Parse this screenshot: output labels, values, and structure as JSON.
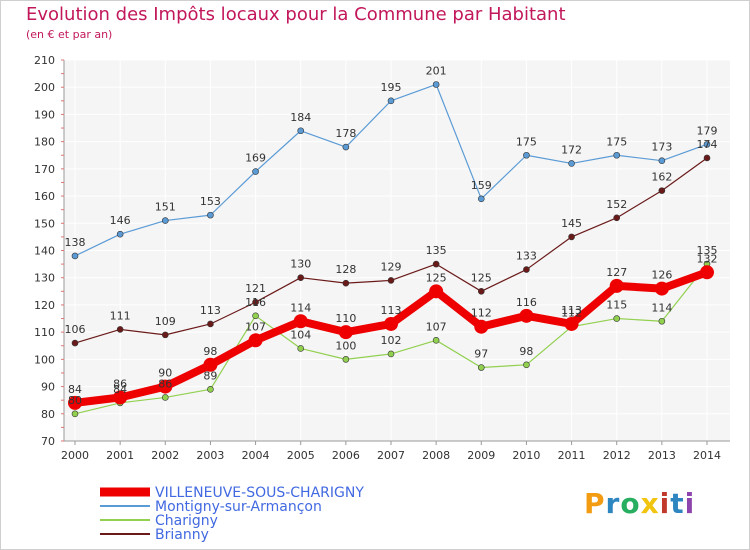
{
  "chart_data": {
    "type": "line",
    "title": "Evolution des Impôts locaux pour la Commune par Habitant",
    "subtitle": "(en € et par an)",
    "x": [
      "2000",
      "2001",
      "2002",
      "2003",
      "2004",
      "2005",
      "2006",
      "2007",
      "2008",
      "2009",
      "2010",
      "2011",
      "2012",
      "2013",
      "2014"
    ],
    "ylim": [
      70,
      210
    ],
    "yticks": [
      70,
      80,
      90,
      100,
      110,
      120,
      130,
      140,
      150,
      160,
      170,
      180,
      190,
      200,
      210
    ],
    "grid": true,
    "legend_placement": "bottom-left",
    "series": [
      {
        "name": "VILLENEUVE-SOUS-CHARIGNY",
        "color": "#ee0000",
        "values": [
          84,
          86,
          90,
          98,
          107,
          114,
          110,
          113,
          125,
          112,
          116,
          113,
          127,
          126,
          132
        ]
      },
      {
        "name": "Montigny-sur-Armançon",
        "color": "#5b9bd5",
        "values": [
          138,
          146,
          151,
          153,
          169,
          184,
          178,
          195,
          201,
          159,
          175,
          172,
          175,
          173,
          179
        ]
      },
      {
        "name": "Charigny",
        "color": "#92d050",
        "values": [
          80,
          84,
          86,
          89,
          116,
          104,
          100,
          102,
          107,
          97,
          98,
          112,
          115,
          114,
          135
        ]
      },
      {
        "name": "Brianny",
        "color": "#6b1a1a",
        "values": [
          106,
          111,
          109,
          113,
          121,
          130,
          128,
          129,
          135,
          125,
          133,
          145,
          152,
          162,
          174
        ]
      }
    ]
  },
  "brand": {
    "letters": [
      "P",
      "r",
      "o",
      "x",
      "i",
      "t",
      "i"
    ],
    "colors": [
      "#f39c12",
      "#2e86c1",
      "#27ae60",
      "#f1c40f",
      "#c0392b",
      "#2e86c1",
      "#8e44ad"
    ]
  }
}
